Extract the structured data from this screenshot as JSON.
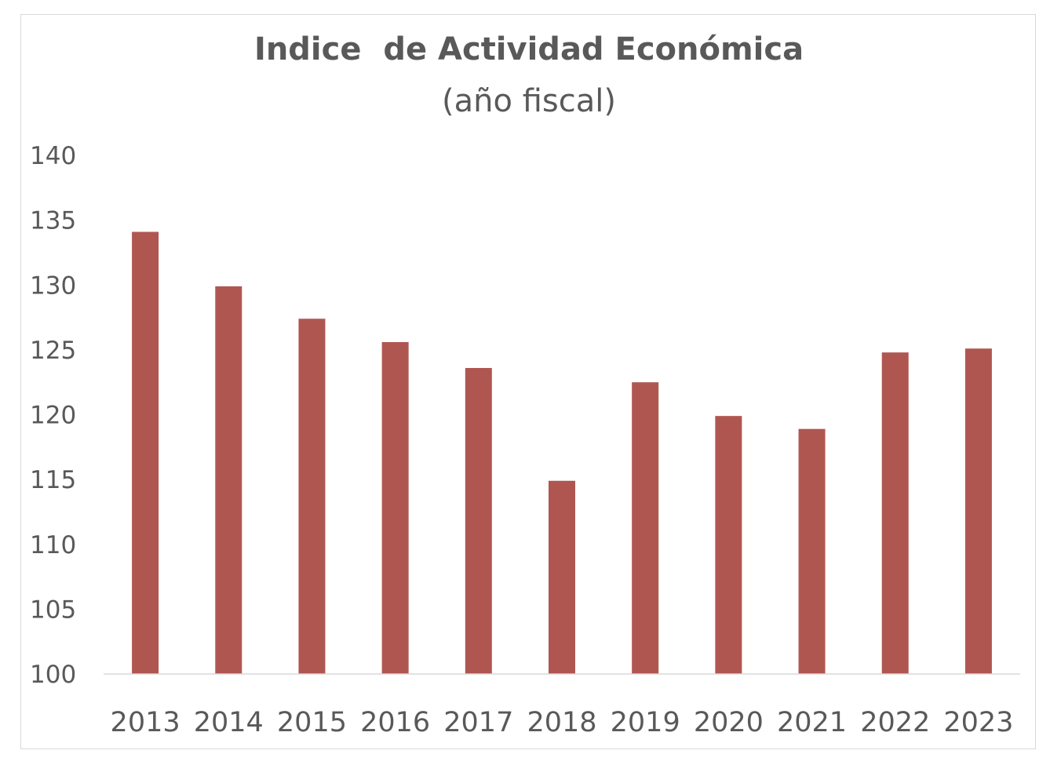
{
  "chart_data": {
    "type": "bar",
    "title": "Indice  de Actividad Económica",
    "subtitle": "(año fiscal)",
    "xlabel": "",
    "ylabel": "",
    "categories": [
      "2013",
      "2014",
      "2015",
      "2016",
      "2017",
      "2018",
      "2019",
      "2020",
      "2021",
      "2022",
      "2023"
    ],
    "values": [
      134.1,
      129.9,
      127.4,
      125.6,
      123.6,
      114.9,
      122.5,
      119.9,
      118.9,
      124.8,
      125.1
    ],
    "ylim": [
      100,
      140
    ],
    "yticks": [
      "100",
      "105",
      "110",
      "115",
      "120",
      "125",
      "130",
      "135",
      "140"
    ],
    "grid": false,
    "legend": "none",
    "bar_color": "#b05651",
    "axis_color": "#d9d9d9",
    "text_color": "#595959"
  }
}
